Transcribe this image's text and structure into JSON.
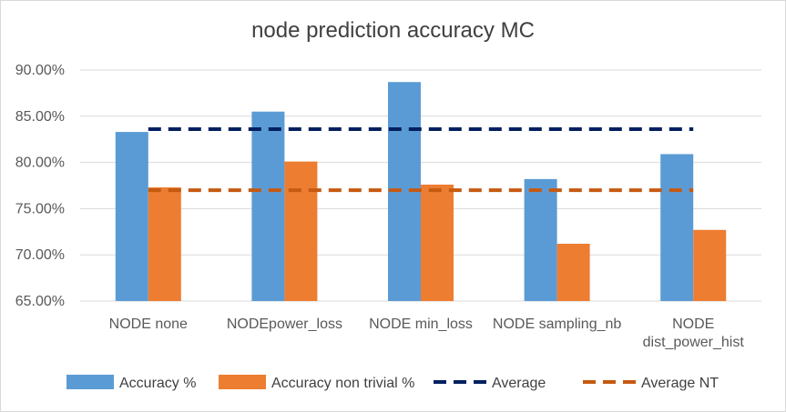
{
  "chart_data": {
    "type": "bar",
    "title": "node  prediction accuracy MC",
    "xlabel": "",
    "ylabel": "",
    "ylim": [
      0.65,
      0.9
    ],
    "yticks": [
      "65.00%",
      "70.00%",
      "75.00%",
      "80.00%",
      "85.00%",
      "90.00%"
    ],
    "ytick_values": [
      0.65,
      0.7,
      0.75,
      0.8,
      0.85,
      0.9
    ],
    "categories": [
      "NODE none",
      "NODEpower_loss",
      "NODE min_loss",
      "NODE sampling_nb",
      "NODE dist_power_hist"
    ],
    "category_lines": [
      [
        "NODE none"
      ],
      [
        "NODEpower_loss"
      ],
      [
        "NODE min_loss"
      ],
      [
        "NODE sampling_nb"
      ],
      [
        "NODE",
        "dist_power_hist"
      ]
    ],
    "series": [
      {
        "name": "Accuracy %",
        "kind": "bar",
        "color": "#5B9BD5",
        "values": [
          0.833,
          0.855,
          0.887,
          0.782,
          0.809
        ]
      },
      {
        "name": "Accuracy non trivial %",
        "kind": "bar",
        "color": "#ED7D31",
        "values": [
          0.773,
          0.801,
          0.776,
          0.712,
          0.727
        ]
      },
      {
        "name": "Average",
        "kind": "dashed-line",
        "color": "#002060",
        "values": [
          0.836,
          0.836,
          0.836,
          0.836,
          0.836
        ]
      },
      {
        "name": "Average NT",
        "kind": "dashed-line",
        "color": "#C55A11",
        "values": [
          0.77,
          0.77,
          0.77,
          0.77,
          0.77
        ]
      }
    ],
    "grid": true,
    "legend_position": "bottom"
  }
}
